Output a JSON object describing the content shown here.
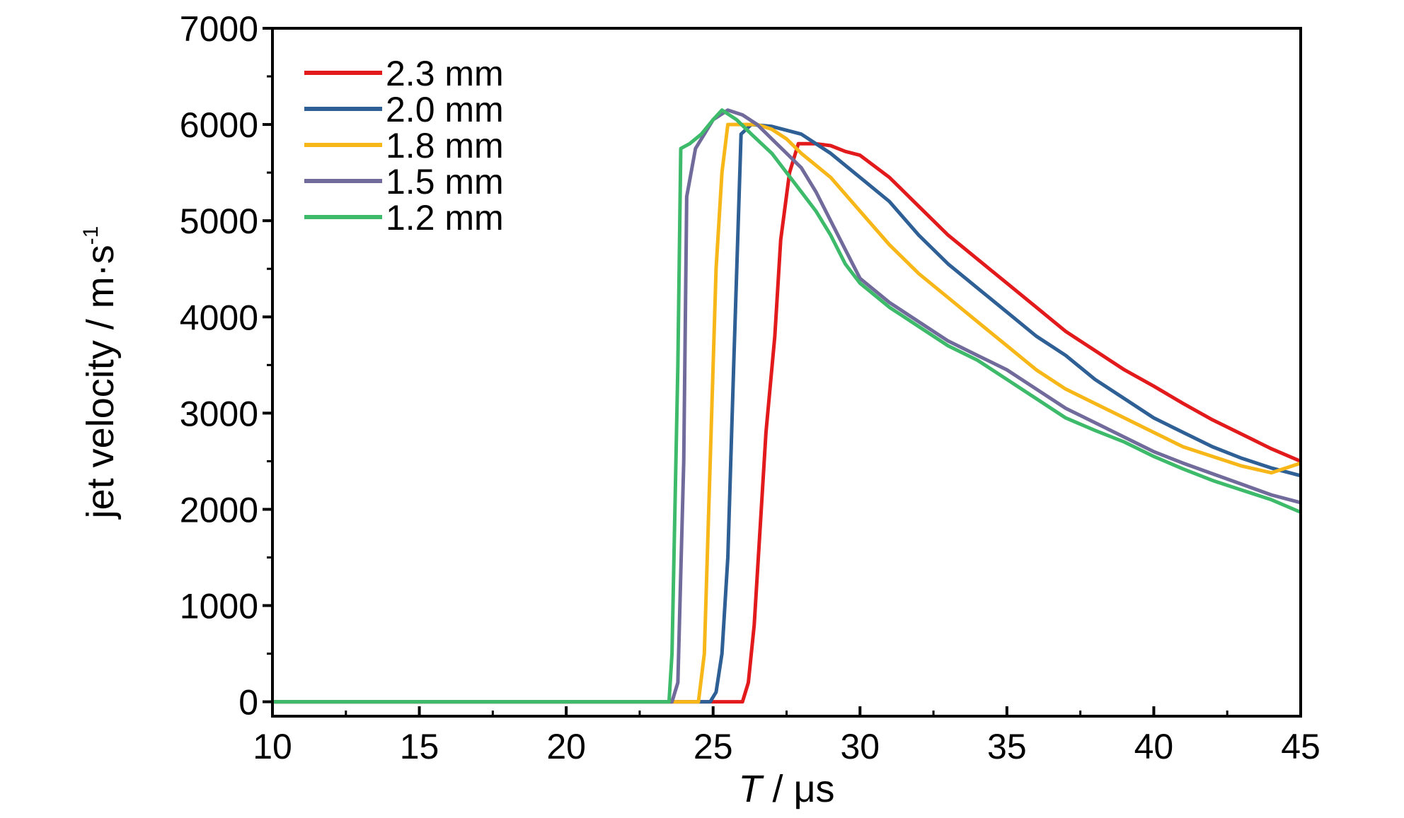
{
  "chart_data": {
    "type": "line",
    "title": "",
    "xlabel_italic": "T",
    "xlabel_rest": " / μs",
    "ylabel_main": "jet velocity / m·s",
    "ylabel_sup": "-1",
    "xlim": [
      10,
      45
    ],
    "ylim": [
      -150,
      7000
    ],
    "x_ticks": [
      10,
      15,
      20,
      25,
      30,
      35,
      40,
      45
    ],
    "x_tick_labels": [
      "10",
      "15",
      "20",
      "25",
      "30",
      "35",
      "40",
      "45"
    ],
    "y_ticks": [
      0,
      1000,
      2000,
      3000,
      4000,
      5000,
      6000,
      7000
    ],
    "y_tick_labels": [
      "0",
      "1000",
      "2000",
      "3000",
      "4000",
      "5000",
      "6000",
      "7000"
    ],
    "grid": false,
    "legend_position": "top-left",
    "series": [
      {
        "name": "2.3 mm",
        "color": "#e31a1c",
        "points": [
          [
            10,
            0
          ],
          [
            24.5,
            0
          ],
          [
            26,
            0
          ],
          [
            26.2,
            200
          ],
          [
            26.4,
            800
          ],
          [
            26.6,
            1800
          ],
          [
            26.8,
            2800
          ],
          [
            27.1,
            3800
          ],
          [
            27.3,
            4800
          ],
          [
            27.6,
            5500
          ],
          [
            27.9,
            5800
          ],
          [
            28.5,
            5800
          ],
          [
            29,
            5780
          ],
          [
            29.5,
            5720
          ],
          [
            30,
            5680
          ],
          [
            31,
            5450
          ],
          [
            32,
            5150
          ],
          [
            33,
            4850
          ],
          [
            34,
            4600
          ],
          [
            35,
            4350
          ],
          [
            36,
            4100
          ],
          [
            37,
            3850
          ],
          [
            38,
            3650
          ],
          [
            39,
            3450
          ],
          [
            40,
            3280
          ],
          [
            41,
            3100
          ],
          [
            42,
            2930
          ],
          [
            43,
            2780
          ],
          [
            44,
            2630
          ],
          [
            45,
            2500
          ]
        ]
      },
      {
        "name": "2.0 mm",
        "color": "#2e5f95",
        "points": [
          [
            10,
            0
          ],
          [
            24.3,
            0
          ],
          [
            24.9,
            0
          ],
          [
            25.1,
            100
          ],
          [
            25.3,
            500
          ],
          [
            25.5,
            1500
          ],
          [
            25.7,
            3500
          ],
          [
            25.95,
            5900
          ],
          [
            26.3,
            6000
          ],
          [
            27,
            5980
          ],
          [
            28,
            5900
          ],
          [
            29,
            5700
          ],
          [
            30,
            5450
          ],
          [
            31,
            5200
          ],
          [
            32,
            4850
          ],
          [
            33,
            4550
          ],
          [
            34,
            4300
          ],
          [
            35,
            4050
          ],
          [
            36,
            3800
          ],
          [
            37,
            3600
          ],
          [
            38,
            3350
          ],
          [
            39,
            3150
          ],
          [
            40,
            2950
          ],
          [
            41,
            2800
          ],
          [
            42,
            2650
          ],
          [
            43,
            2530
          ],
          [
            44,
            2430
          ],
          [
            45,
            2350
          ]
        ]
      },
      {
        "name": "1.8 mm",
        "color": "#f7b718",
        "points": [
          [
            10,
            0
          ],
          [
            24.5,
            0
          ],
          [
            24.7,
            500
          ],
          [
            24.9,
            2500
          ],
          [
            25.1,
            4500
          ],
          [
            25.3,
            5500
          ],
          [
            25.5,
            6000
          ],
          [
            26.5,
            6000
          ],
          [
            27,
            5950
          ],
          [
            27.5,
            5850
          ],
          [
            28,
            5700
          ],
          [
            29,
            5450
          ],
          [
            30,
            5100
          ],
          [
            31,
            4750
          ],
          [
            32,
            4450
          ],
          [
            33,
            4200
          ],
          [
            34,
            3950
          ],
          [
            35,
            3700
          ],
          [
            36,
            3450
          ],
          [
            37,
            3250
          ],
          [
            38,
            3100
          ],
          [
            39,
            2950
          ],
          [
            40,
            2800
          ],
          [
            41,
            2650
          ],
          [
            42,
            2550
          ],
          [
            43,
            2450
          ],
          [
            44,
            2380
          ],
          [
            45,
            2480
          ]
        ]
      },
      {
        "name": "1.5 mm",
        "color": "#716b9c",
        "points": [
          [
            10,
            0
          ],
          [
            23.6,
            0
          ],
          [
            23.8,
            200
          ],
          [
            24,
            2500
          ],
          [
            24.1,
            5250
          ],
          [
            24.4,
            5750
          ],
          [
            24.7,
            5900
          ],
          [
            25,
            6050
          ],
          [
            25.5,
            6150
          ],
          [
            26,
            6100
          ],
          [
            26.5,
            6000
          ],
          [
            27,
            5850
          ],
          [
            27.5,
            5700
          ],
          [
            28,
            5550
          ],
          [
            28.5,
            5300
          ],
          [
            29,
            5000
          ],
          [
            29.5,
            4700
          ],
          [
            30,
            4400
          ],
          [
            31,
            4150
          ],
          [
            32,
            3950
          ],
          [
            33,
            3750
          ],
          [
            34,
            3600
          ],
          [
            35,
            3450
          ],
          [
            36,
            3250
          ],
          [
            37,
            3050
          ],
          [
            38,
            2900
          ],
          [
            39,
            2750
          ],
          [
            40,
            2600
          ],
          [
            41,
            2480
          ],
          [
            42,
            2370
          ],
          [
            43,
            2260
          ],
          [
            44,
            2150
          ],
          [
            45,
            2070
          ]
        ]
      },
      {
        "name": "1.2 mm",
        "color": "#3dbb6a",
        "points": [
          [
            10,
            0
          ],
          [
            23.5,
            0
          ],
          [
            23.6,
            500
          ],
          [
            23.8,
            3500
          ],
          [
            23.9,
            5750
          ],
          [
            24.2,
            5800
          ],
          [
            24.6,
            5900
          ],
          [
            25,
            6050
          ],
          [
            25.3,
            6150
          ],
          [
            25.8,
            6050
          ],
          [
            26.3,
            5900
          ],
          [
            27,
            5700
          ],
          [
            27.5,
            5500
          ],
          [
            28,
            5300
          ],
          [
            28.5,
            5100
          ],
          [
            29,
            4850
          ],
          [
            29.5,
            4550
          ],
          [
            30,
            4350
          ],
          [
            31,
            4100
          ],
          [
            32,
            3900
          ],
          [
            33,
            3700
          ],
          [
            34,
            3550
          ],
          [
            35,
            3350
          ],
          [
            36,
            3150
          ],
          [
            37,
            2950
          ],
          [
            38,
            2820
          ],
          [
            39,
            2700
          ],
          [
            40,
            2550
          ],
          [
            41,
            2420
          ],
          [
            42,
            2300
          ],
          [
            43,
            2200
          ],
          [
            44,
            2100
          ],
          [
            45,
            1970
          ]
        ]
      }
    ]
  }
}
